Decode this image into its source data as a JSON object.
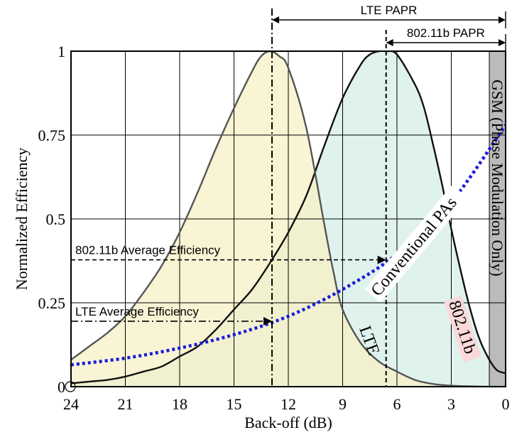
{
  "chart_data": {
    "type": "area",
    "xlabel": "Back-off (dB)",
    "ylabel": "Normalized Efficiency",
    "xlim": [
      24,
      0
    ],
    "ylim": [
      0,
      1
    ],
    "x_ticks": [
      "24",
      "21",
      "18",
      "15",
      "12",
      "9",
      "6",
      "3",
      "0"
    ],
    "y_ticks": [
      "0",
      "0.25",
      "0.5",
      "0.75",
      "1"
    ],
    "grid": true,
    "series": [
      {
        "name": "LTE",
        "kind": "pdf-area",
        "color": "#f6f1c8",
        "x": [
          24,
          23,
          22,
          21,
          20,
          19,
          18,
          17,
          16,
          15,
          14,
          13.5,
          13,
          12.5,
          12,
          11,
          10,
          9.5,
          9,
          8,
          7,
          6,
          5,
          4,
          3,
          2,
          1,
          0
        ],
        "y": [
          0.08,
          0.12,
          0.16,
          0.21,
          0.28,
          0.36,
          0.46,
          0.58,
          0.71,
          0.83,
          0.94,
          0.985,
          1.0,
          0.985,
          0.95,
          0.77,
          0.48,
          0.34,
          0.23,
          0.13,
          0.075,
          0.045,
          0.02,
          0.008,
          0.003,
          0.001,
          0.0,
          0.0
        ]
      },
      {
        "name": "802.11b",
        "kind": "pdf-area",
        "color": "#dff2ee",
        "x": [
          24,
          23,
          22,
          21,
          20,
          19,
          18,
          17,
          16,
          15,
          14,
          13,
          12,
          11,
          10,
          9,
          8,
          7.5,
          7,
          6.6,
          6,
          5,
          4.5,
          4,
          3.5,
          3,
          2.5,
          2,
          1.5,
          1,
          0.5,
          0
        ],
        "y": [
          0.01,
          0.015,
          0.02,
          0.03,
          0.045,
          0.06,
          0.09,
          0.12,
          0.17,
          0.23,
          0.29,
          0.37,
          0.46,
          0.57,
          0.72,
          0.86,
          0.96,
          0.99,
          1.0,
          1.0,
          0.99,
          0.9,
          0.83,
          0.72,
          0.6,
          0.47,
          0.35,
          0.24,
          0.15,
          0.09,
          0.05,
          0.04
        ]
      },
      {
        "name": "Conventional PAs",
        "kind": "dotted-line",
        "color": "#1a1adb",
        "x": [
          24,
          21,
          18,
          15,
          12,
          9,
          6,
          3,
          0
        ],
        "y": [
          0.065,
          0.085,
          0.115,
          0.155,
          0.21,
          0.29,
          0.395,
          0.55,
          0.78
        ]
      }
    ],
    "gsm_band": {
      "x_from": 0.9,
      "x_to": 0,
      "label": "GSM (Phase Modulation Only)",
      "color": "#bbbbbb"
    },
    "markers": [
      {
        "label": "LTE Average Efficiency",
        "y": 0.195,
        "x_to": 12.9
      },
      {
        "label": "802.11b Average Efficiency",
        "y": 0.378,
        "x_to": 6.6
      }
    ],
    "peak_lines": [
      {
        "name": "LTE peak",
        "x": 12.9
      },
      {
        "name": "802.11b peak",
        "x": 6.6
      }
    ],
    "papr": [
      {
        "label": "LTE PAPR",
        "x_from": 12.9,
        "x_to": 0
      },
      {
        "label": "802.11b PAPR",
        "x_from": 6.6,
        "x_to": 0
      }
    ],
    "labels": {
      "lte": "LTE",
      "wifi": "802.11b",
      "conventional": "Conventional PAs"
    }
  }
}
